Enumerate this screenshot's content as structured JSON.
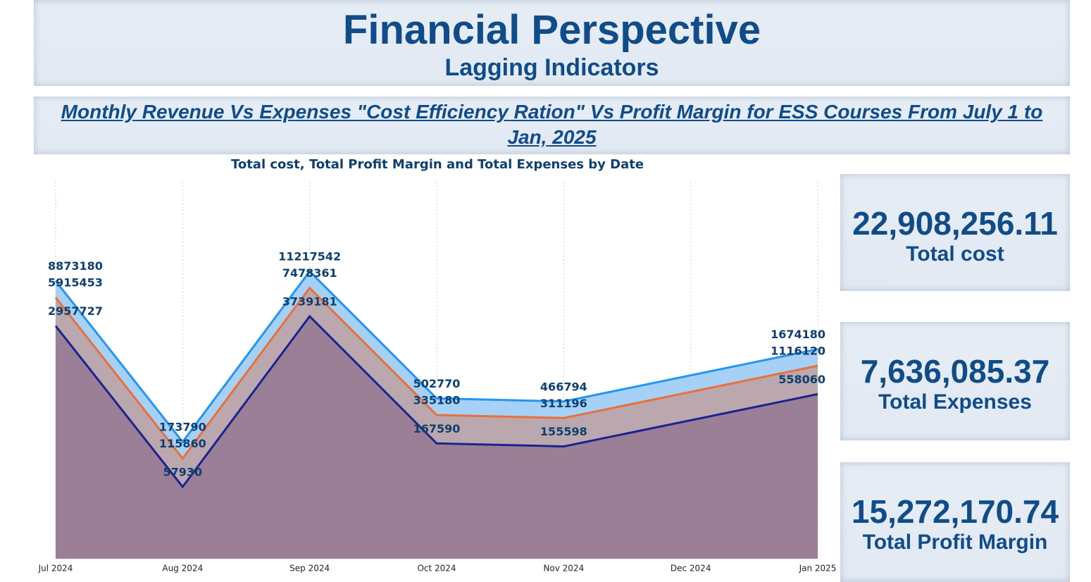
{
  "header": {
    "title": "Financial Perspective",
    "subtitle": "Lagging Indicators"
  },
  "section": {
    "heading": "Monthly Revenue Vs Expenses \"Cost Efficiency Ration\" Vs Profit Margin for ESS Courses From July 1 to Jan, 2025"
  },
  "chart_data": {
    "type": "area",
    "title": "Total cost, Total Profit Margin and Total Expenses by Date",
    "x": [
      "Jul 2024",
      "Aug 2024",
      "Sep 2024",
      "Oct 2024",
      "Nov 2024",
      "Jan 2025"
    ],
    "xticks": [
      "Jul 2024",
      "Aug 2024",
      "Sep 2024",
      "Oct 2024",
      "Nov 2024",
      "Dec 2024",
      "Jan 2025"
    ],
    "ylim": [
      10000,
      100000000
    ],
    "log_scale": true,
    "grid": true,
    "series": [
      {
        "name": "Total cost",
        "color": "#2196f3",
        "fill": "#a6d0f5",
        "values": [
          8873180,
          173790,
          11217542,
          502770,
          466794,
          1674180
        ]
      },
      {
        "name": "Total Profit Margin",
        "color": "#e8703a",
        "fill": "#bba8ae",
        "values": [
          5915453,
          115860,
          7478361,
          335180,
          311196,
          1116120
        ]
      },
      {
        "name": "Total Expenses",
        "color": "#1a2390",
        "fill": "#9a7f96",
        "values": [
          2957727,
          57930,
          3739181,
          167590,
          155598,
          558060
        ]
      }
    ]
  },
  "cards": [
    {
      "value": "22,908,256.11",
      "label": "Total cost"
    },
    {
      "value": "7,636,085.37",
      "label": "Total Expenses"
    },
    {
      "value": "15,272,170.74",
      "label": "Total Profit Margin"
    }
  ]
}
